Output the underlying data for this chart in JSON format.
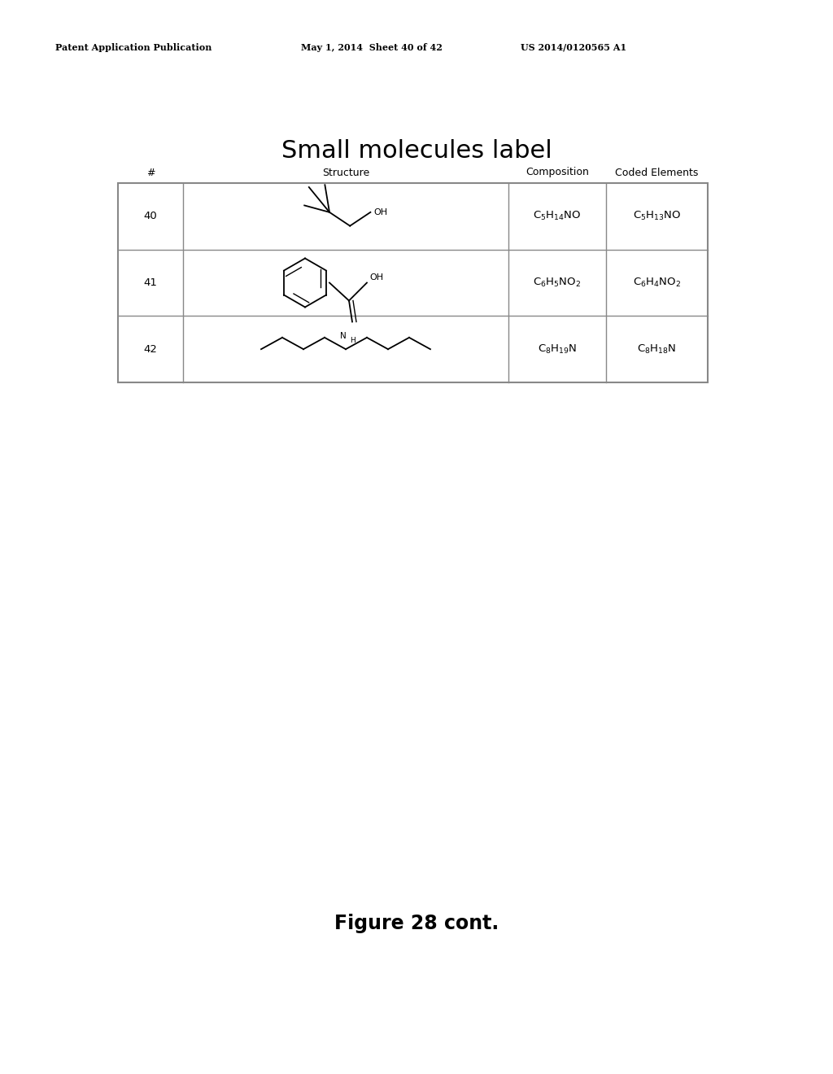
{
  "title": "Small molecules label",
  "header_row": [
    "#",
    "Structure",
    "Composition",
    "Coded Elements"
  ],
  "rows": [
    {
      "num": "40",
      "composition": "C$_5$H$_{14}$NO",
      "coded": "C$_5$H$_{13}$NO"
    },
    {
      "num": "41",
      "composition": "C$_6$H$_5$NO$_2$",
      "coded": "C$_6$H$_4$NO$_2$"
    },
    {
      "num": "42",
      "composition": "C$_8$H$_{19}$N",
      "coded": "C$_8$H$_{18}$N"
    }
  ],
  "patent_left": "Patent Application Publication",
  "patent_mid": "May 1, 2014  Sheet 40 of 42",
  "patent_right": "US 2014/0120565 A1",
  "figure_caption": "Figure 28 cont.",
  "bg_color": "#ffffff",
  "text_color": "#000000",
  "table_border_color": "#888888",
  "title_fontsize": 22,
  "header_fontsize": 9,
  "body_fontsize": 9.5
}
